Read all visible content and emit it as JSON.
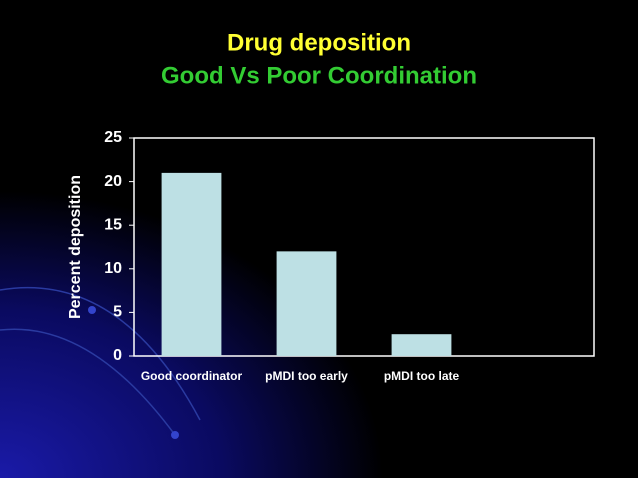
{
  "chart_data": {
    "type": "bar",
    "title": "Drug deposition",
    "subtitle": "Good Vs Poor Coordination",
    "title_color": "#ffff33",
    "subtitle_color": "#33cc33",
    "y_label": "Percent deposition",
    "categories": [
      "Good coordinator",
      "pMDI too early",
      "pMDI too late",
      null
    ],
    "values": [
      21,
      12,
      2.5,
      null
    ],
    "color": "#bde0e4",
    "ylim": [
      0,
      25
    ],
    "yticks": [
      0,
      5,
      10,
      15,
      20,
      25
    ],
    "grid": false
  }
}
